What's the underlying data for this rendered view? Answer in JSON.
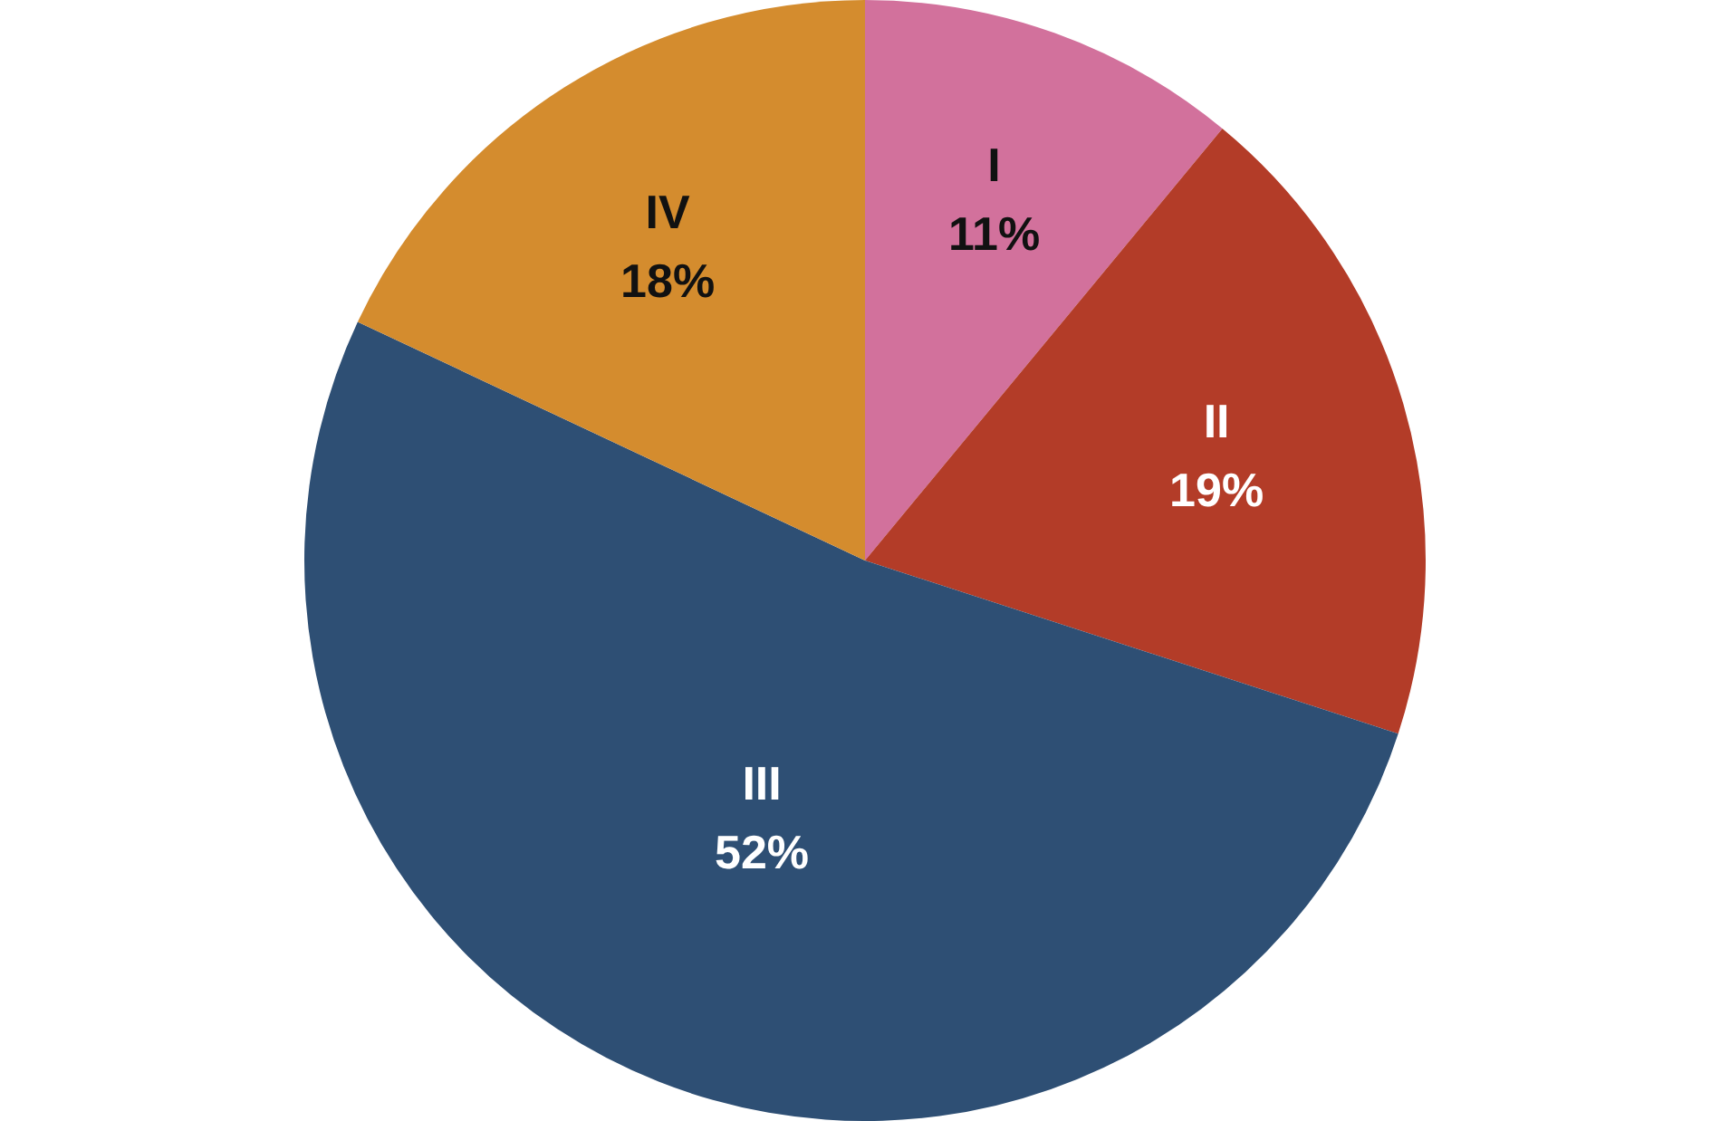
{
  "chart_data": {
    "type": "pie",
    "categories": [
      "I",
      "II",
      "III",
      "IV"
    ],
    "values": [
      11,
      19,
      52,
      18
    ],
    "colors": [
      "#d2719c",
      "#b33c28",
      "#2e4f74",
      "#d48c2e"
    ],
    "value_labels": [
      "11%",
      "19%",
      "52%",
      "18%"
    ]
  }
}
